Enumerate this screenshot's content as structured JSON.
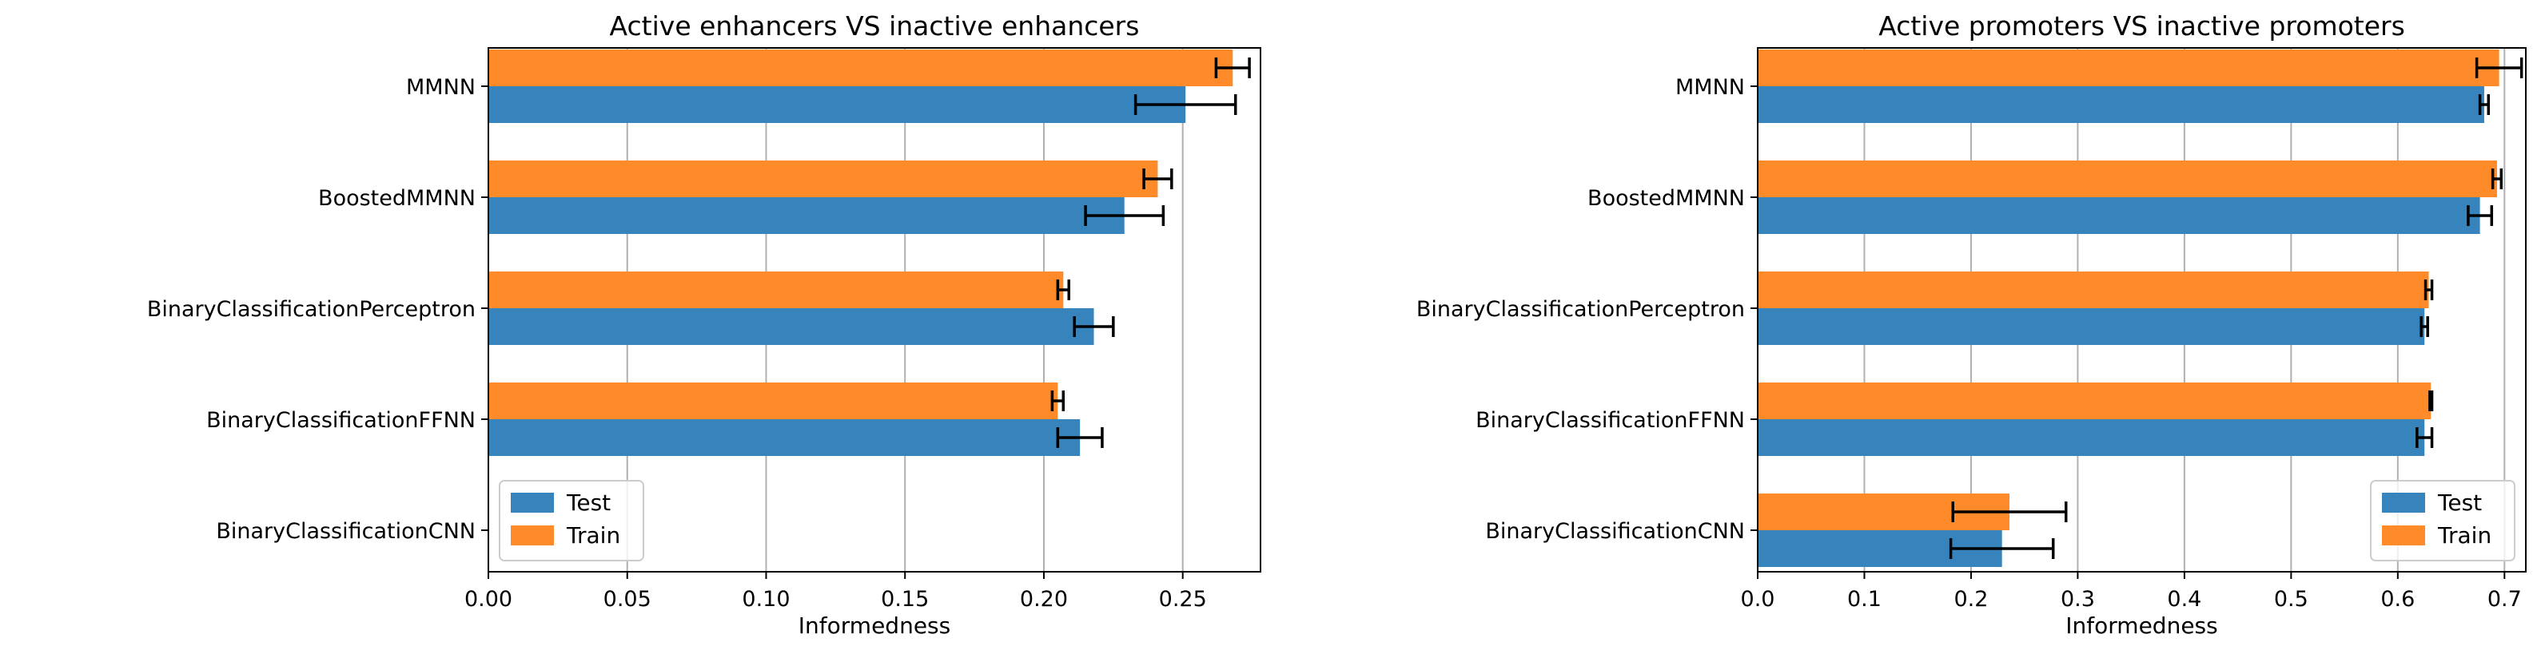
{
  "chart_data": [
    {
      "type": "bar",
      "orientation": "horizontal",
      "title": "Active enhancers VS inactive enhancers",
      "xlabel": "Informedness",
      "ylabel": "",
      "xlim": [
        0,
        0.278
      ],
      "xticks": [
        0,
        0.05,
        0.1,
        0.15,
        0.2,
        0.25
      ],
      "xtick_labels": [
        "0.00",
        "0.05",
        "0.10",
        "0.15",
        "0.20",
        "0.25"
      ],
      "grid": "vertical",
      "legend_position": "lower-left",
      "categories": [
        "MMNN",
        "BoostedMMNN",
        "BinaryClassificationPerceptron",
        "BinaryClassificationFFNN",
        "BinaryClassificationCNN"
      ],
      "series": [
        {
          "name": "Test",
          "color": "#3783bb",
          "values": [
            0.251,
            0.229,
            0.218,
            0.213,
            0.0
          ],
          "errors": [
            0.018,
            0.014,
            0.007,
            0.008,
            0.0
          ]
        },
        {
          "name": "Train",
          "color": "#fe8a2a",
          "values": [
            0.268,
            0.241,
            0.207,
            0.205,
            0.0
          ],
          "errors": [
            0.006,
            0.005,
            0.002,
            0.002,
            0.0
          ]
        }
      ]
    },
    {
      "type": "bar",
      "orientation": "horizontal",
      "title": "Active promoters VS inactive promoters",
      "xlabel": "Informedness",
      "ylabel": "",
      "xlim": [
        0,
        0.72
      ],
      "xticks": [
        0,
        0.1,
        0.2,
        0.3,
        0.4,
        0.5,
        0.6,
        0.7
      ],
      "xtick_labels": [
        "0.0",
        "0.1",
        "0.2",
        "0.3",
        "0.4",
        "0.5",
        "0.6",
        "0.7"
      ],
      "grid": "vertical",
      "legend_position": "lower-right",
      "categories": [
        "MMNN",
        "BoostedMMNN",
        "BinaryClassificationPerceptron",
        "BinaryClassificationFFNN",
        "BinaryClassificationCNN"
      ],
      "series": [
        {
          "name": "Test",
          "color": "#3783bb",
          "values": [
            0.681,
            0.677,
            0.625,
            0.625,
            0.229
          ],
          "errors": [
            0.004,
            0.011,
            0.003,
            0.007,
            0.048
          ]
        },
        {
          "name": "Train",
          "color": "#fe8a2a",
          "values": [
            0.695,
            0.693,
            0.629,
            0.631,
            0.236
          ],
          "errors": [
            0.021,
            0.004,
            0.003,
            0.001,
            0.053
          ]
        }
      ]
    }
  ]
}
